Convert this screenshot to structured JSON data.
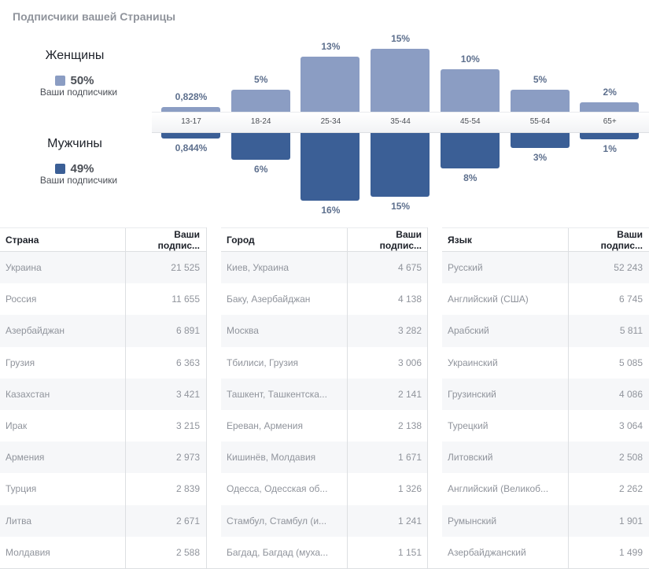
{
  "header": {
    "title": "Подписчики вашей Страницы"
  },
  "legend": {
    "women": {
      "label": "Женщины",
      "percent": "50%",
      "sub": "Ваши подписчики",
      "color": "#8b9dc3"
    },
    "men": {
      "label": "Мужчины",
      "percent": "49%",
      "sub": "Ваши подписчики",
      "color": "#3b5f96"
    }
  },
  "chart_data": {
    "type": "bar",
    "title": "Подписчики вашей Страницы",
    "categories": [
      "13-17",
      "18-24",
      "25-34",
      "35-44",
      "45-54",
      "55-64",
      "65+"
    ],
    "series": [
      {
        "name": "Женщины",
        "values": [
          0.828,
          5,
          13,
          15,
          10,
          5,
          2
        ],
        "labels": [
          "0,828%",
          "5%",
          "13%",
          "15%",
          "10%",
          "5%",
          "2%"
        ],
        "color": "#8b9dc3",
        "direction": "up"
      },
      {
        "name": "Мужчины",
        "values": [
          0.844,
          6,
          16,
          15,
          8,
          3,
          1
        ],
        "labels": [
          "0,844%",
          "6%",
          "16%",
          "15%",
          "8%",
          "3%",
          "1%"
        ],
        "color": "#3b5f96",
        "direction": "down"
      }
    ],
    "xlabel": "",
    "ylabel": "",
    "ylim": [
      0,
      16
    ],
    "grid": false,
    "legend": "left"
  },
  "tables": [
    {
      "headers": [
        "Страна",
        "Ваши подпис..."
      ],
      "rows": [
        [
          "Украина",
          "21 525"
        ],
        [
          "Россия",
          "11 655"
        ],
        [
          "Азербайджан",
          "6 891"
        ],
        [
          "Грузия",
          "6 363"
        ],
        [
          "Казахстан",
          "3 421"
        ],
        [
          "Ирак",
          "3 215"
        ],
        [
          "Армения",
          "2 973"
        ],
        [
          "Турция",
          "2 839"
        ],
        [
          "Литва",
          "2 671"
        ],
        [
          "Молдавия",
          "2 588"
        ]
      ]
    },
    {
      "headers": [
        "Город",
        "Ваши подпис..."
      ],
      "rows": [
        [
          "Киев, Украина",
          "4 675"
        ],
        [
          "Баку, Азербайджан",
          "4 138"
        ],
        [
          "Москва",
          "3 282"
        ],
        [
          "Тбилиси, Грузия",
          "3 006"
        ],
        [
          "Ташкент, Ташкентска...",
          "2 141"
        ],
        [
          "Ереван, Армения",
          "2 138"
        ],
        [
          "Кишинёв, Молдавия",
          "1 671"
        ],
        [
          "Одесса, Одесская об...",
          "1 326"
        ],
        [
          "Стамбул, Стамбул (и...",
          "1 241"
        ],
        [
          "Багдад, Багдад (муха...",
          "1 151"
        ]
      ]
    },
    {
      "headers": [
        "Язык",
        "Ваши подпис..."
      ],
      "rows": [
        [
          "Русский",
          "52 243"
        ],
        [
          "Английский (США)",
          "6 745"
        ],
        [
          "Арабский",
          "5 811"
        ],
        [
          "Украинский",
          "5 085"
        ],
        [
          "Грузинский",
          "4 086"
        ],
        [
          "Турецкий",
          "3 064"
        ],
        [
          "Литовский",
          "2 508"
        ],
        [
          "Английский (Великоб...",
          "2 262"
        ],
        [
          "Румынский",
          "1 901"
        ],
        [
          "Азербайджанский",
          "1 499"
        ]
      ]
    }
  ]
}
